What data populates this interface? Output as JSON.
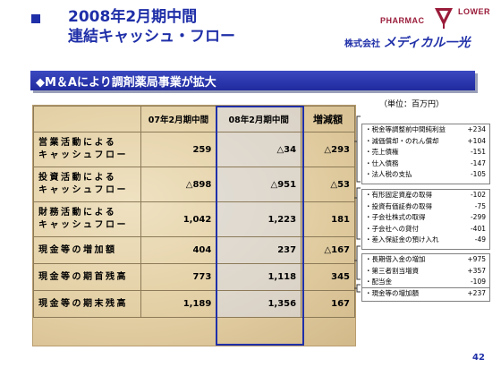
{
  "header": {
    "title_line1": "2008年2月期中間",
    "title_line2": "連結キャッシュ・フロー",
    "logo_left": "PHARMAC",
    "logo_right": "LOWER",
    "company_prefix": "株式会社",
    "company_name": "メディカル一光"
  },
  "banner": {
    "text": "◆M＆Aにより調剤薬局事業が拡大"
  },
  "unit_label": "（単位：百万円）",
  "table": {
    "headers": [
      "",
      "07年2月期中間",
      "08年2月期中間",
      "増減額"
    ],
    "rows": [
      {
        "label1": "営業活動による",
        "label2": "キャッシュフロー",
        "v1": "259",
        "v2": "△34",
        "v3": "△293"
      },
      {
        "label1": "投資活動による",
        "label2": "キャッシュフロー",
        "v1": "△898",
        "v2": "△951",
        "v3": "△53"
      },
      {
        "label1": "財務活動による",
        "label2": "キャッシュフロー",
        "v1": "1,042",
        "v2": "1,223",
        "v3": "181"
      },
      {
        "label1": "現金等の増加額",
        "label2": "",
        "v1": "404",
        "v2": "237",
        "v3": "△167"
      },
      {
        "label1": "現金等の期首残高",
        "label2": "",
        "v1": "773",
        "v2": "1,118",
        "v3": "345"
      },
      {
        "label1": "現金等の期末残高",
        "label2": "",
        "v1": "1,189",
        "v2": "1,356",
        "v3": "167"
      }
    ]
  },
  "notes": {
    "operating": [
      {
        "label": "・税金等調整前中間純利益",
        "value": "+234"
      },
      {
        "label": "・減価償却・のれん償却",
        "value": "+104"
      },
      {
        "label": "・売上債権",
        "value": "-151"
      },
      {
        "label": "・仕入債務",
        "value": "-147"
      },
      {
        "label": "・法人税の支払",
        "value": "-105"
      }
    ],
    "investing": [
      {
        "label": "・有形固定資産の取得",
        "value": "-102"
      },
      {
        "label": "・投資有価証券の取得",
        "value": "-75"
      },
      {
        "label": "・子会社株式の取得",
        "value": "-299"
      },
      {
        "label": "・子会社への貸付",
        "value": "-401"
      },
      {
        "label": "・差入保証金の預け入れ",
        "value": "-49"
      }
    ],
    "financing": [
      {
        "label": "・長期借入金の増加",
        "value": "+975"
      },
      {
        "label": "・第三者割当増資",
        "value": "+357"
      },
      {
        "label": "・配当金",
        "value": "-109"
      }
    ],
    "cash": [
      {
        "label": "・現金等の増加額",
        "value": "+237"
      }
    ]
  },
  "page_number": "42",
  "colors": {
    "accent": "#1f2fa8",
    "banner": "#2a36b0",
    "panel": "#e3cfa4"
  }
}
